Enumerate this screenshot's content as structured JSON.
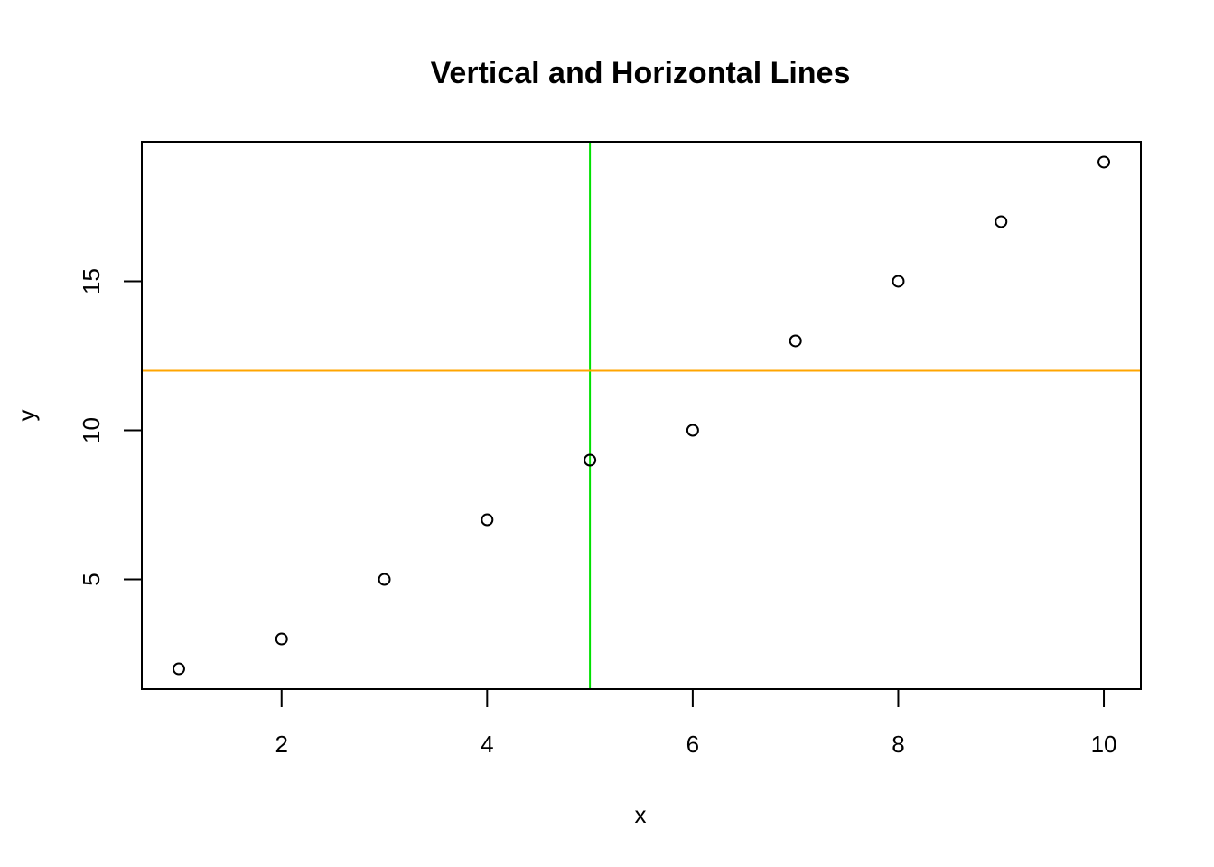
{
  "chart_data": {
    "type": "scatter",
    "title": "Vertical and Horizontal Lines",
    "xlabel": "x",
    "ylabel": "y",
    "x": [
      1,
      2,
      3,
      4,
      5,
      6,
      7,
      8,
      9,
      10
    ],
    "y": [
      2,
      3,
      5,
      7,
      9,
      10,
      13,
      15,
      17,
      19
    ],
    "xlim": [
      0.64,
      10.36
    ],
    "ylim": [
      1.32,
      19.68
    ],
    "x_ticks": [
      2,
      4,
      6,
      8,
      10
    ],
    "y_ticks": [
      5,
      10,
      15
    ],
    "grid": false,
    "legend": null,
    "point_style": "open-circle",
    "reference_lines": [
      {
        "orientation": "vertical",
        "at": 5,
        "axis": "x",
        "color": "#00e000"
      },
      {
        "orientation": "horizontal",
        "at": 12,
        "axis": "y",
        "color": "#ffa500"
      }
    ]
  },
  "colors": {
    "axis": "#000000",
    "points": "#000000",
    "vline": "#00e000",
    "hline": "#ffa500",
    "background": "#ffffff"
  }
}
